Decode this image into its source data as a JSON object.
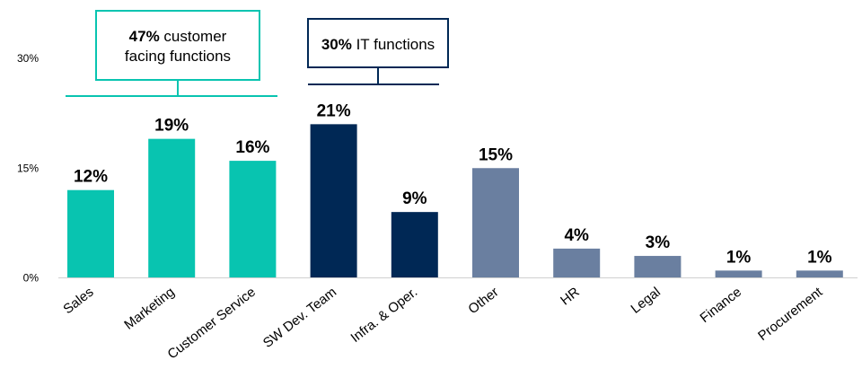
{
  "chart_data": {
    "type": "bar",
    "categories": [
      "Sales",
      "Marketing",
      "Customer Service",
      "SW Dev. Team",
      "Infra. & Oper.",
      "Other",
      "HR",
      "Legal",
      "Finance",
      "Procurement"
    ],
    "values": [
      12,
      19,
      16,
      21,
      9,
      15,
      4,
      3,
      1,
      1
    ],
    "data_labels": [
      "12%",
      "19%",
      "16%",
      "21%",
      "9%",
      "15%",
      "4%",
      "3%",
      "1%",
      "1%"
    ],
    "groups": [
      "customer",
      "customer",
      "customer",
      "it",
      "it",
      "other",
      "other",
      "other",
      "other",
      "other"
    ],
    "colors": {
      "customer": "#08C4B0",
      "it": "#002855",
      "other": "#6A7FA0",
      "axis": "#D0D0D0"
    },
    "ylim": [
      0,
      30
    ],
    "yticks": [
      "0%",
      "15%",
      "30%"
    ],
    "ytick_values": [
      0,
      15,
      30
    ],
    "grid": false,
    "title": "",
    "xlabel": "",
    "ylabel": "",
    "annotations": [
      {
        "bold": "47%",
        "text": " customer",
        "line2": "facing functions",
        "group": "customer"
      },
      {
        "bold": "30%",
        "text": " IT functions",
        "group": "it"
      }
    ]
  }
}
